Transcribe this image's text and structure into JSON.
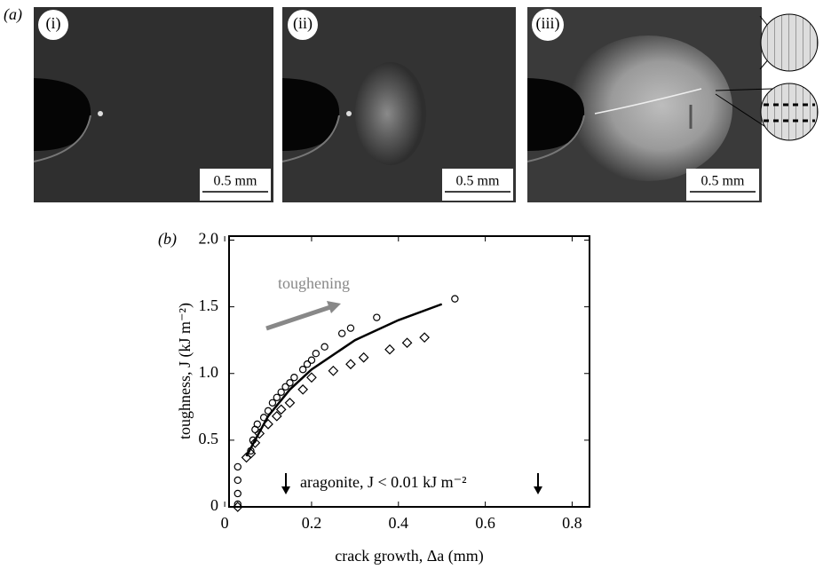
{
  "panel_a": {
    "label": "(a)",
    "images": [
      {
        "label": "(i)",
        "scale_bar": "0.5 mm"
      },
      {
        "label": "(ii)",
        "scale_bar": "0.5 mm"
      },
      {
        "label": "(iii)",
        "scale_bar": "0.5 mm"
      }
    ]
  },
  "chart_data": {
    "type": "scatter",
    "panel_label": "(b)",
    "xlabel": "crack growth, Δa (mm)",
    "ylabel": "toughness, J (kJ m⁻²)",
    "xlim": [
      0.01,
      0.84
    ],
    "ylim": [
      0,
      2.03
    ],
    "xticks": [
      0,
      0.2,
      0.4,
      0.6,
      0.8
    ],
    "yticks": [
      0,
      0.5,
      {
        "value": 1,
        "label": "1.0"
      },
      1.5,
      {
        "value": 2,
        "label": "2.0"
      }
    ],
    "series": [
      {
        "marker": "circle",
        "color": "#000000",
        "x": [
          0.03,
          0.03,
          0.03,
          0.03,
          0.06,
          0.065,
          0.07,
          0.075,
          0.09,
          0.1,
          0.11,
          0.12,
          0.13,
          0.14,
          0.15,
          0.16,
          0.18,
          0.19,
          0.2,
          0.21,
          0.23,
          0.27,
          0.29,
          0.35,
          0.53
        ],
        "values": [
          0.02,
          0.1,
          0.2,
          0.3,
          0.42,
          0.5,
          0.58,
          0.62,
          0.67,
          0.72,
          0.78,
          0.82,
          0.86,
          0.9,
          0.93,
          0.97,
          1.03,
          1.07,
          1.1,
          1.15,
          1.2,
          1.3,
          1.34,
          1.42,
          1.56
        ]
      },
      {
        "marker": "diamond",
        "color": "#000000",
        "x": [
          0.03,
          0.05,
          0.06,
          0.07,
          0.08,
          0.1,
          0.12,
          0.13,
          0.15,
          0.18,
          0.2,
          0.25,
          0.29,
          0.32,
          0.38,
          0.42,
          0.46
        ],
        "values": [
          0.0,
          0.37,
          0.4,
          0.48,
          0.55,
          0.62,
          0.68,
          0.73,
          0.78,
          0.88,
          0.97,
          1.02,
          1.07,
          1.12,
          1.18,
          1.23,
          1.27
        ]
      },
      {
        "marker": "line",
        "color": "#000000",
        "x": [
          0.05,
          0.1,
          0.15,
          0.2,
          0.3,
          0.4,
          0.5
        ],
        "values": [
          0.38,
          0.68,
          0.88,
          1.03,
          1.25,
          1.4,
          1.52
        ]
      }
    ],
    "annotations": [
      "toughening",
      "aragonite, J < 0.01 kJ m⁻²"
    ]
  }
}
